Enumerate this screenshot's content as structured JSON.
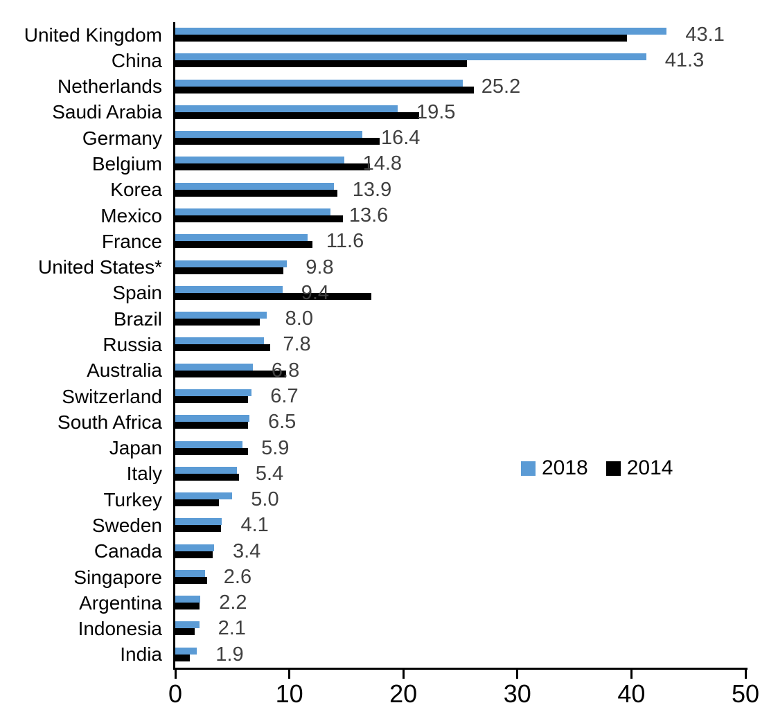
{
  "chart_data": {
    "type": "bar",
    "orientation": "horizontal",
    "title": "",
    "xlabel": "",
    "ylabel": "",
    "xlim": [
      0,
      50
    ],
    "x_ticks": [
      0,
      10,
      20,
      30,
      40,
      50
    ],
    "grid": "off",
    "legend_position": "middle-right",
    "value_labels_series": "2018",
    "value_label_color": "#404040",
    "axis_color": "#000000",
    "categories": [
      "United Kingdom",
      "China",
      "Netherlands",
      "Saudi Arabia",
      "Germany",
      "Belgium",
      "Korea",
      "Mexico",
      "France",
      "United States*",
      "Spain",
      "Brazil",
      "Russia",
      "Australia",
      "Switzerland",
      "South Africa",
      "Japan",
      "Italy",
      "Turkey",
      "Sweden",
      "Canada",
      "Singapore",
      "Argentina",
      "Indonesia",
      "India"
    ],
    "series": [
      {
        "name": "2018",
        "color": "#5B9BD5",
        "values": [
          43.1,
          41.3,
          25.2,
          19.5,
          16.4,
          14.8,
          13.9,
          13.6,
          11.6,
          9.8,
          9.4,
          8.0,
          7.8,
          6.8,
          6.7,
          6.5,
          5.9,
          5.4,
          5.0,
          4.1,
          3.4,
          2.6,
          2.2,
          2.1,
          1.9
        ],
        "labels": [
          "43.1",
          "41.3",
          "25.2",
          "19.5",
          "16.4",
          "14.8",
          "13.9",
          "13.6",
          "11.6",
          "9.8",
          "9.4",
          "8.0",
          "7.8",
          "6.8",
          "6.7",
          "6.5",
          "5.9",
          "5.4",
          "5.0",
          "4.1",
          "3.4",
          "2.6",
          "2.2",
          "2.1",
          "1.9"
        ]
      },
      {
        "name": "2014",
        "color": "#000000",
        "values": [
          39.6,
          25.6,
          26.2,
          21.4,
          17.9,
          17.1,
          14.2,
          14.7,
          12.0,
          9.5,
          17.2,
          7.4,
          8.3,
          9.7,
          6.4,
          6.4,
          6.4,
          5.6,
          3.8,
          4.0,
          3.3,
          2.8,
          2.1,
          1.7,
          1.3
        ]
      }
    ]
  }
}
